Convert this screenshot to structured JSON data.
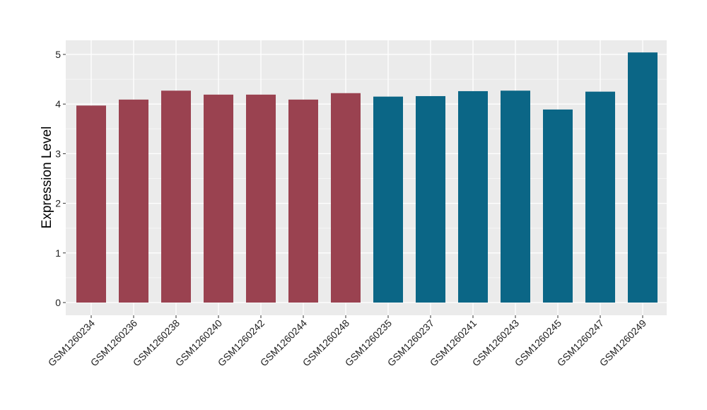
{
  "chart_data": {
    "type": "bar",
    "title": "",
    "xlabel": "",
    "ylabel": "Expression Level",
    "ylim": [
      0,
      5.25
    ],
    "yticks": [
      0,
      1,
      2,
      3,
      4,
      5
    ],
    "grid": true,
    "categories": [
      "GSM1260234",
      "GSM1260236",
      "GSM1260238",
      "GSM1260240",
      "GSM1260242",
      "GSM1260244",
      "GSM1260248",
      "GSM1260235",
      "GSM1260237",
      "GSM1260241",
      "GSM1260243",
      "GSM1260245",
      "GSM1260247",
      "GSM1260249"
    ],
    "values": [
      3.97,
      4.09,
      4.27,
      4.19,
      4.19,
      4.09,
      4.22,
      4.15,
      4.16,
      4.26,
      4.27,
      3.89,
      4.25,
      5.04
    ],
    "groups": [
      0,
      0,
      0,
      0,
      0,
      0,
      0,
      1,
      1,
      1,
      1,
      1,
      1,
      1
    ],
    "group_colors": [
      "#9a4250",
      "#0b6686"
    ]
  }
}
